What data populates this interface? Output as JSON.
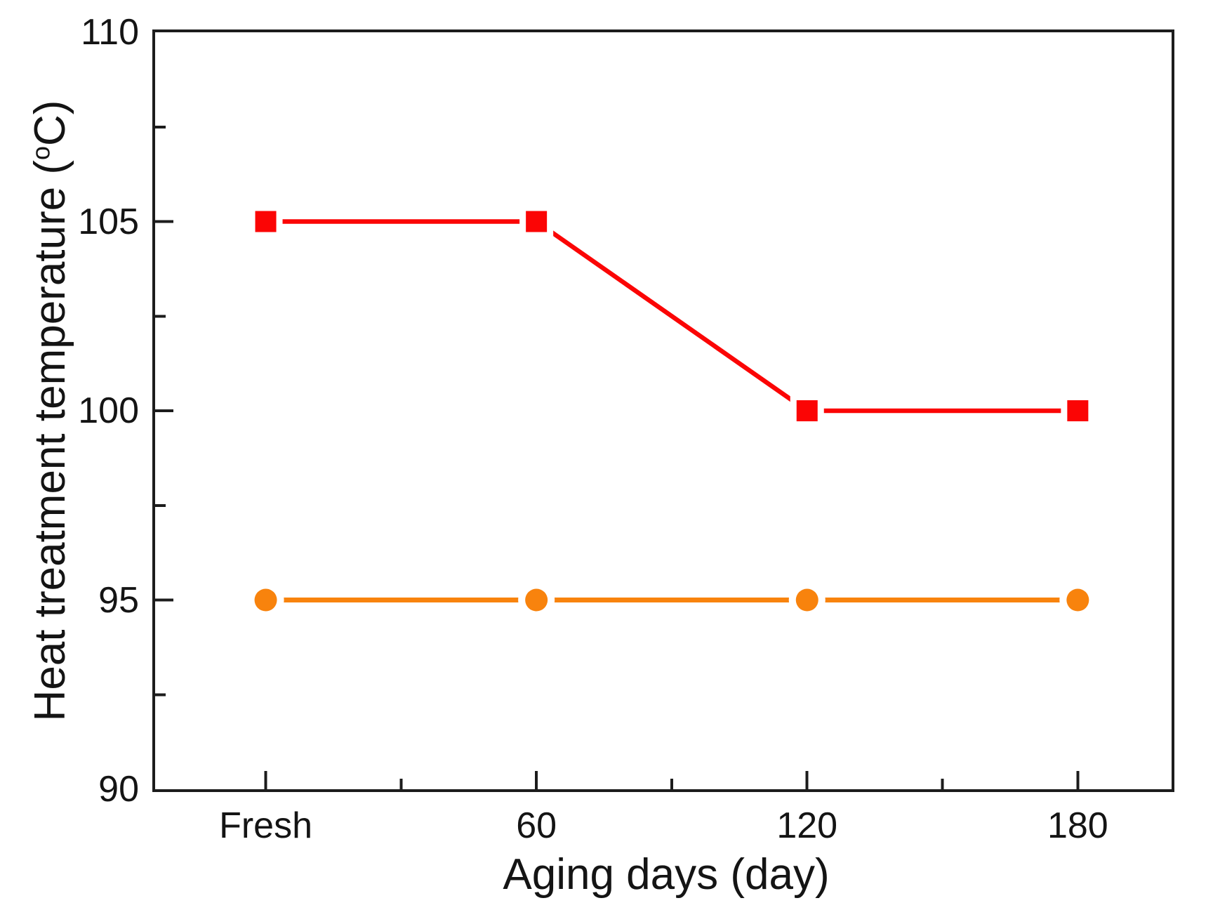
{
  "figure": {
    "background_color": "#ffffff",
    "axis_color": "#1c1c1c",
    "text_color": "#141414"
  },
  "chart_data": {
    "type": "line",
    "title": "",
    "categories": [
      "Fresh",
      "60",
      "120",
      "180"
    ],
    "series": [
      {
        "name": "red-square-series",
        "marker": "square",
        "color": "#fb0505",
        "line_width": 6.5,
        "values": [
          105,
          105,
          100,
          100
        ]
      },
      {
        "name": "orange-circle-series",
        "marker": "circle",
        "color": "#f8830d",
        "line_width": 7,
        "values": [
          95,
          95,
          95,
          95
        ]
      }
    ],
    "xlabel": "Aging days (day)",
    "ylabel": "Heat treatment temperature (°C)",
    "ylabel_parts": {
      "prefix": "Heat treatment temperature (",
      "sup": "o",
      "suffix": "C)"
    },
    "ylim": [
      90,
      110
    ],
    "y_major_ticks": [
      110,
      105,
      100,
      95,
      90
    ],
    "y_minor_ticks": [
      107.5,
      102.5,
      97.5,
      92.5
    ],
    "x_minor_ticks_between_categories": true,
    "grid": false,
    "legend": "none"
  }
}
